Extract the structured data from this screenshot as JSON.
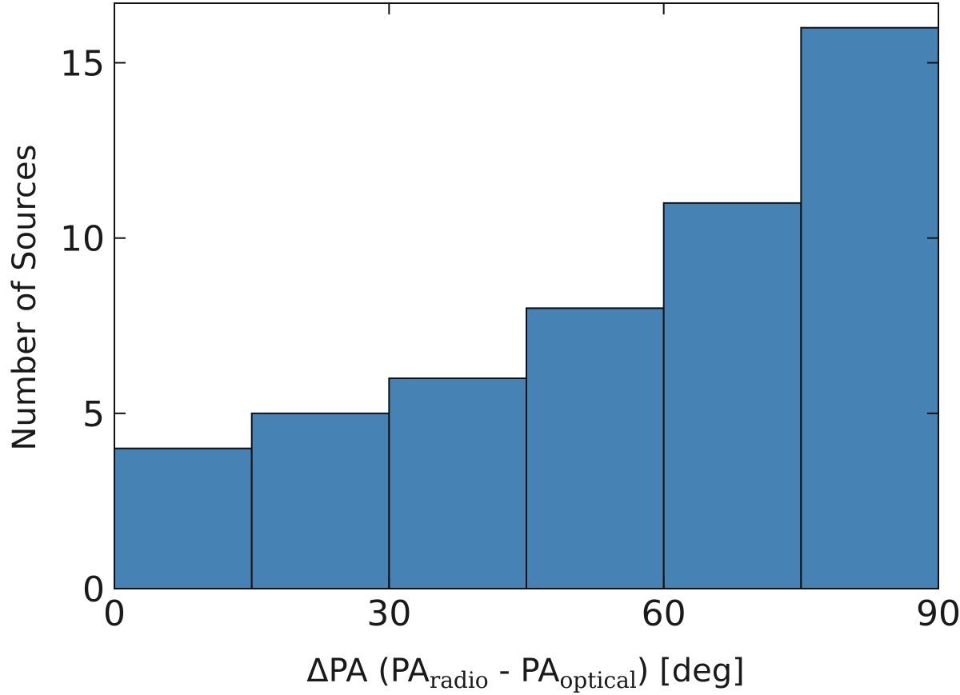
{
  "chart_data": {
    "type": "bar",
    "bins": [
      [
        0,
        15
      ],
      [
        15,
        30
      ],
      [
        30,
        45
      ],
      [
        45,
        60
      ],
      [
        60,
        75
      ],
      [
        75,
        90
      ]
    ],
    "values": [
      4,
      5,
      6,
      8,
      11,
      16
    ],
    "xlim": [
      0,
      90
    ],
    "ylim": [
      0,
      16.7
    ],
    "xticks": [
      0,
      30,
      60,
      90
    ],
    "yticks": [
      0,
      5,
      10,
      15
    ],
    "xtick_labels": [
      "0",
      "30",
      "60",
      "90"
    ],
    "ytick_labels": [
      "0",
      "5",
      "10",
      "15"
    ],
    "xlabel": {
      "prefix": "ΔPA (PA",
      "sub1": "radio",
      "middle": " - PA",
      "sub2": "optical",
      "suffix": ") [deg]"
    },
    "ylabel": "Number of Sources",
    "bar_color": "#4682b4",
    "edge_color": "#111111",
    "grid": false
  }
}
